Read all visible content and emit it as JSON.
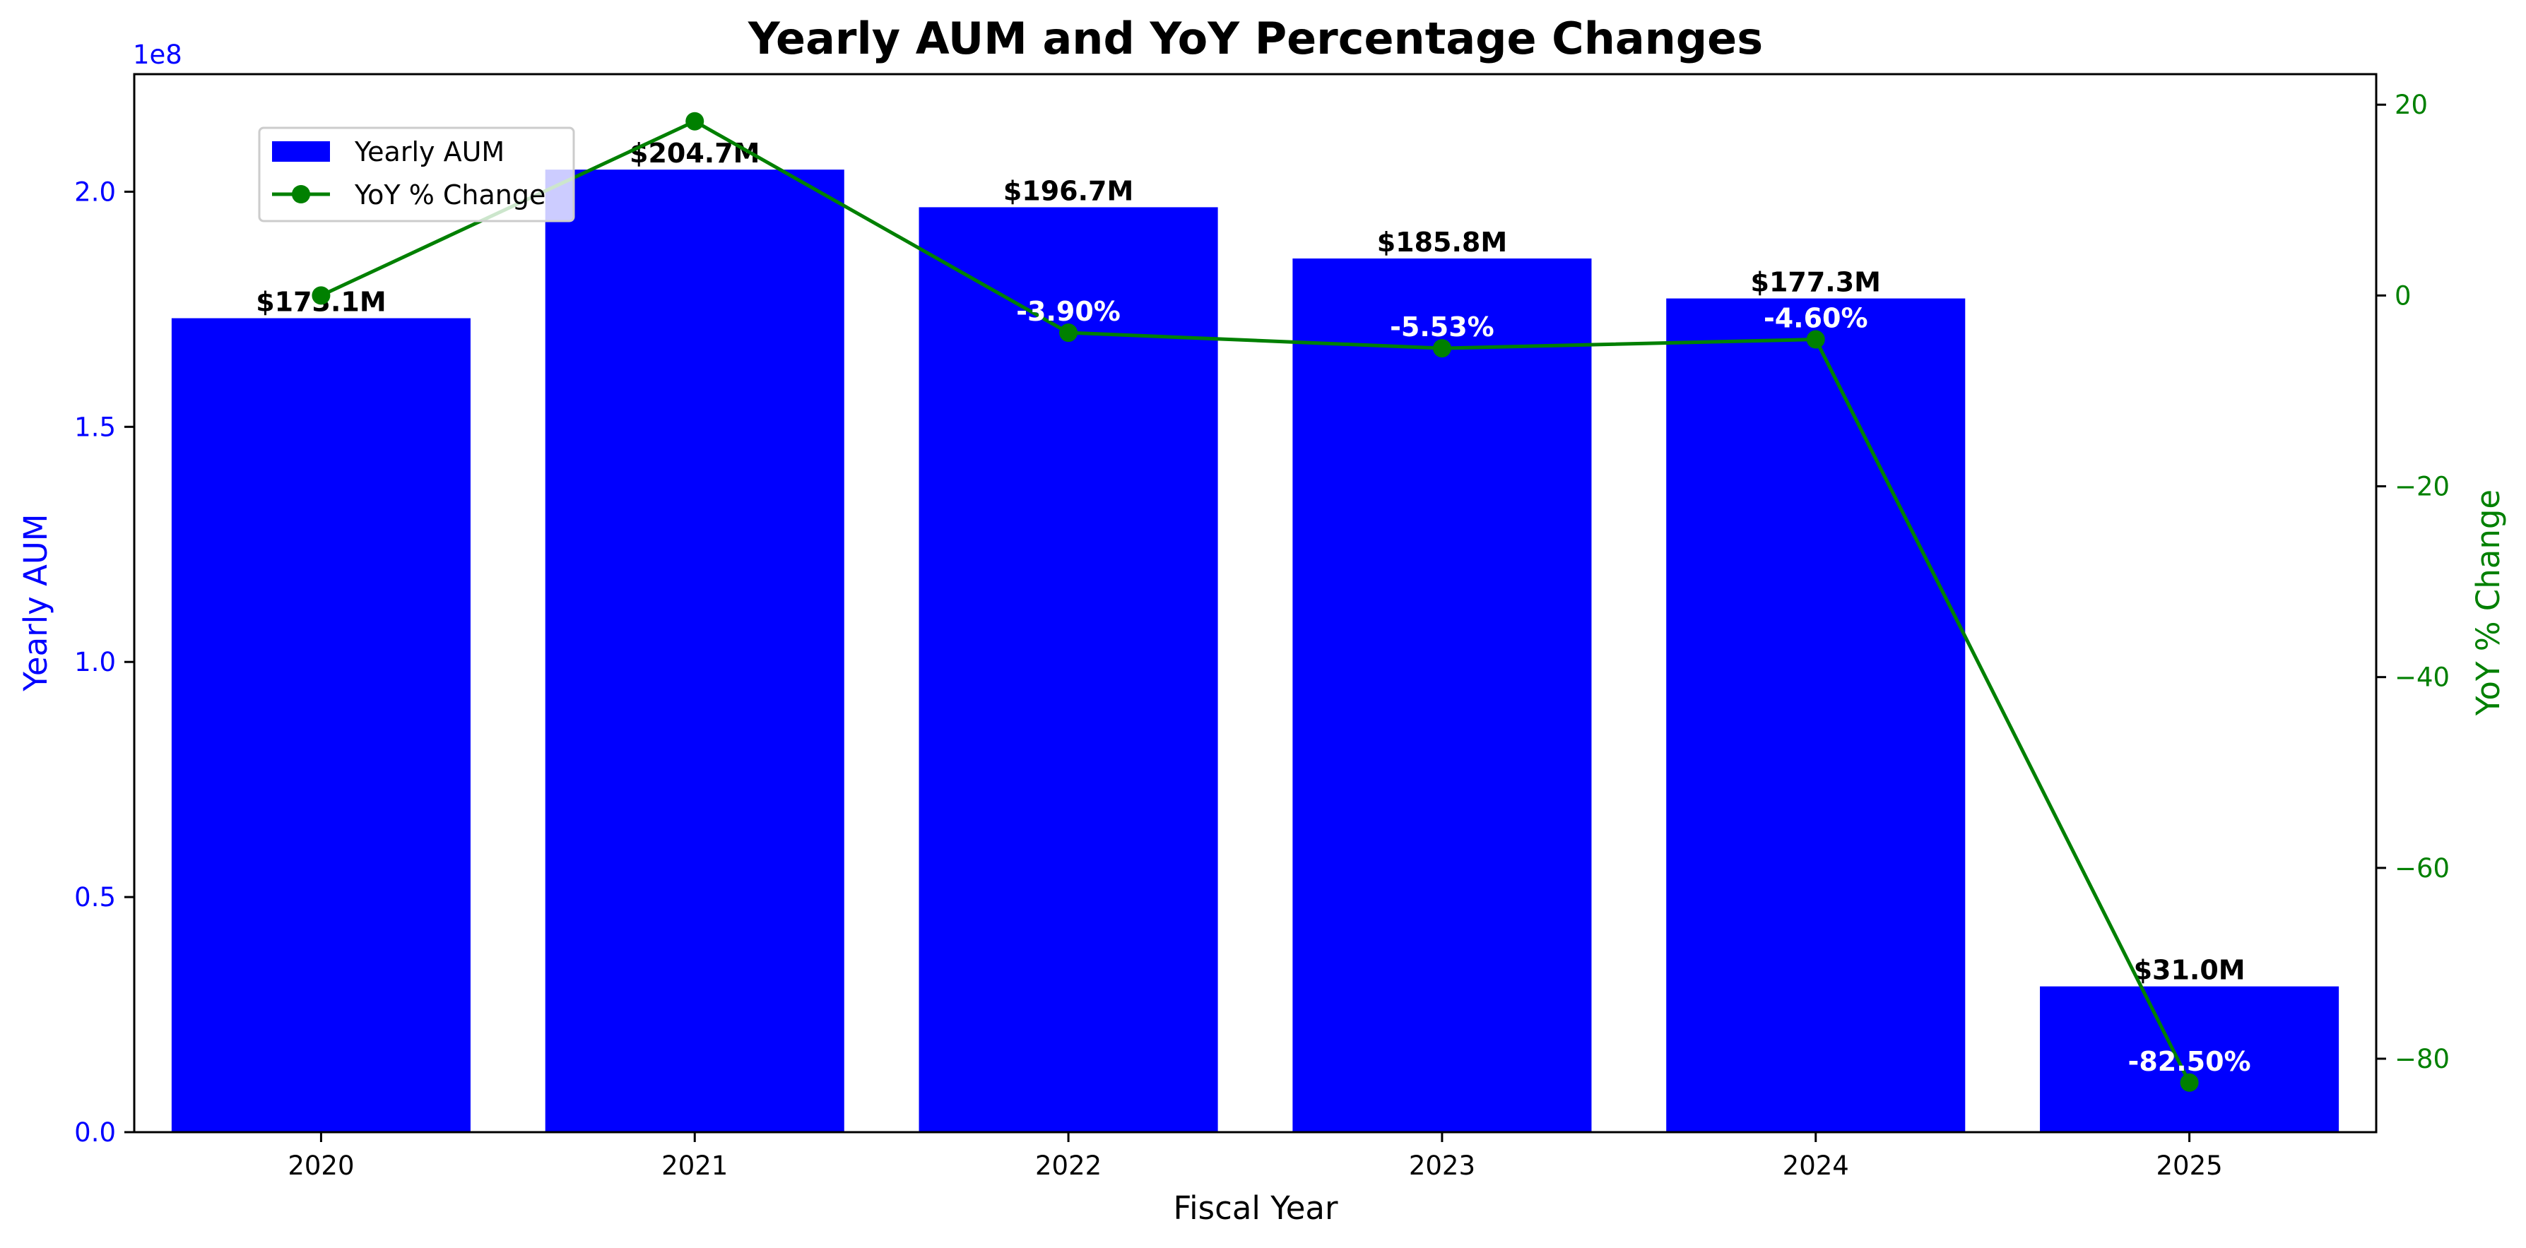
{
  "chart_data": {
    "type": "bar",
    "title": "Yearly AUM and YoY Percentage Changes",
    "xlabel": "Fiscal Year",
    "categories": [
      "2020",
      "2021",
      "2022",
      "2023",
      "2024",
      "2025"
    ],
    "series": [
      {
        "name": "Yearly AUM",
        "type": "bar",
        "axis": "left",
        "color": "#0000ff",
        "values": [
          173100000,
          204700000,
          196700000,
          185800000,
          177300000,
          31000000
        ],
        "labels": [
          "$173.1M",
          "$204.7M",
          "$196.7M",
          "$185.8M",
          "$177.3M",
          "$31.0M"
        ]
      },
      {
        "name": "YoY % Change",
        "type": "line",
        "axis": "right",
        "color": "#008000",
        "values": [
          0,
          18.26,
          -3.9,
          -5.53,
          -4.6,
          -82.5
        ],
        "labels": [
          "",
          "",
          "-3.90%",
          "-5.53%",
          "-4.60%",
          "-82.50%"
        ]
      }
    ],
    "y_left": {
      "label": "Yearly AUM",
      "color": "#0000ff",
      "offset_text": "1e8",
      "ylim": [
        0,
        225000000
      ],
      "ticks": [
        0,
        50000000,
        100000000,
        150000000,
        200000000
      ],
      "tick_labels": [
        "0.0",
        "0.5",
        "1.0",
        "1.5",
        "2.0"
      ]
    },
    "y_right": {
      "label": "YoY % Change",
      "color": "#008000",
      "ylim": [
        -87.7,
        23.2
      ],
      "ticks": [
        20,
        0,
        -20,
        -40,
        -60,
        -80
      ],
      "tick_labels": [
        "20",
        "0",
        "−20",
        "−40",
        "−60",
        "−80"
      ]
    },
    "legend": "upper-left",
    "grid": false
  }
}
